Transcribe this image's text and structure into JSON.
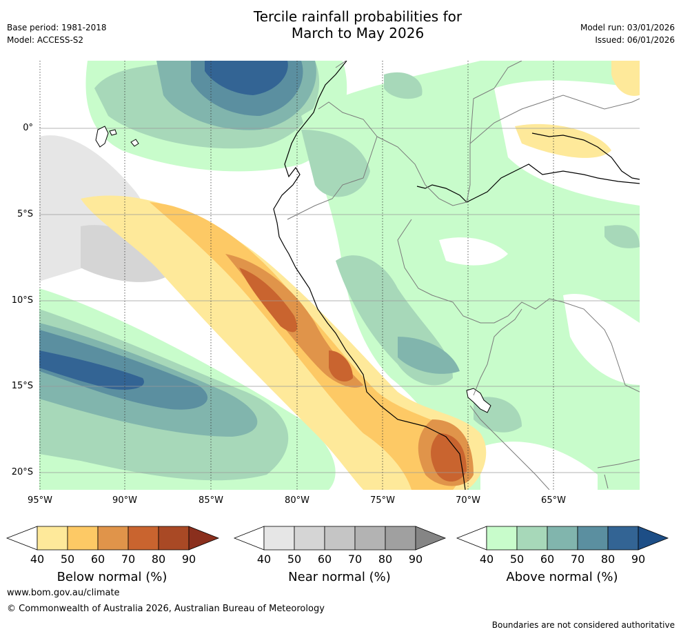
{
  "header": {
    "title_line1": "Tercile rainfall probabilities for",
    "title_line2": "March to May 2026",
    "base_period": "Base period: 1981-2018",
    "model": "Model: ACCESS-S2",
    "model_run": "Model run: 03/01/2026",
    "issued": "Issued: 06/01/2026"
  },
  "map": {
    "lat_labels": [
      "0°",
      "5°S",
      "10°S",
      "15°S",
      "20°S"
    ],
    "lon_labels": [
      "95°W",
      "90°W",
      "85°W",
      "80°W",
      "75°W",
      "70°W",
      "65°W"
    ]
  },
  "colorbars": [
    {
      "title": "Below normal (%)",
      "ticks": [
        "40",
        "50",
        "60",
        "70",
        "80",
        "90"
      ],
      "colors": [
        "#ffffff",
        "#fee99a",
        "#fdc965",
        "#e0944a",
        "#c9642f",
        "#a94925",
        "#8a2f1d"
      ]
    },
    {
      "title": "Near normal (%)",
      "ticks": [
        "40",
        "50",
        "60",
        "70",
        "80",
        "90"
      ],
      "colors": [
        "#ffffff",
        "#e6e6e6",
        "#d5d5d5",
        "#c5c5c5",
        "#b3b3b3",
        "#a0a0a0",
        "#858585"
      ]
    },
    {
      "title": "Above normal (%)",
      "ticks": [
        "40",
        "50",
        "60",
        "70",
        "80",
        "90"
      ],
      "colors": [
        "#ffffff",
        "#c8fccb",
        "#a7d8b9",
        "#81b5ad",
        "#5b8fa0",
        "#336494",
        "#1d4e86"
      ]
    }
  ],
  "footer": {
    "url": "www.bom.gov.au/climate",
    "copyright": "© Commonwealth of Australia 2026, Australian Bureau of Meteorology",
    "disclaimer": "Boundaries are not considered authoritative"
  }
}
